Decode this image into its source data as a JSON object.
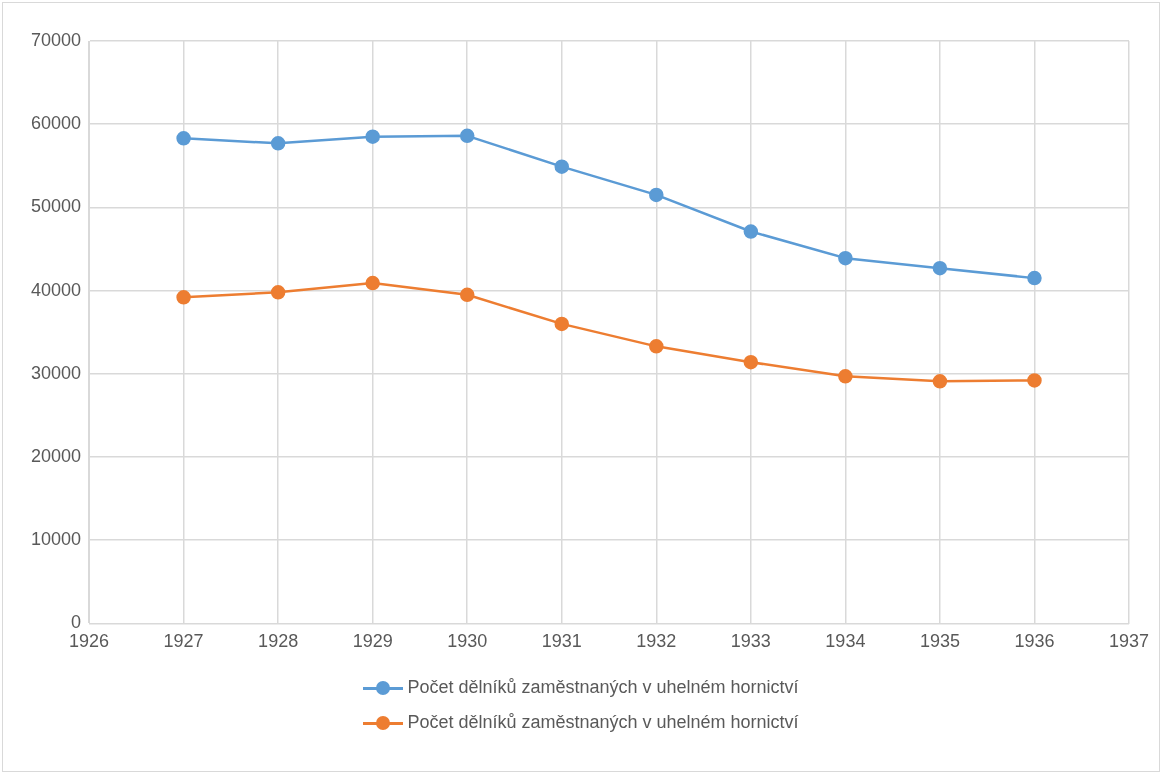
{
  "chart_data": {
    "type": "line",
    "x": [
      1927,
      1928,
      1929,
      1930,
      1931,
      1932,
      1933,
      1934,
      1935,
      1936
    ],
    "series": [
      {
        "name": "Počet dělníků zaměstnaných v uhelném hornictví",
        "color": "#5b9bd5",
        "values": [
          58300,
          57700,
          58500,
          58600,
          54900,
          51500,
          47100,
          43900,
          42700,
          41500
        ]
      },
      {
        "name": "Počet dělníků zaměstnaných v uhelném hornictví",
        "color": "#ed7d31",
        "values": [
          39200,
          39800,
          40900,
          39500,
          36000,
          33300,
          31400,
          29700,
          29100,
          29200
        ]
      }
    ],
    "xlim": [
      1926,
      1937
    ],
    "xticks": [
      1926,
      1927,
      1928,
      1929,
      1930,
      1931,
      1932,
      1933,
      1934,
      1935,
      1936,
      1937
    ],
    "ylim": [
      0,
      70000
    ],
    "yticks": [
      0,
      10000,
      20000,
      30000,
      40000,
      50000,
      60000,
      70000
    ],
    "grid": true,
    "legend": "bottom",
    "marker": "circle",
    "line_style": "solid"
  }
}
